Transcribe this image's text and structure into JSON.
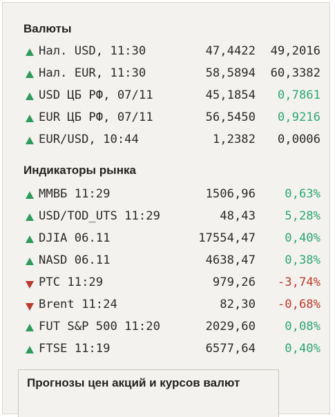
{
  "currencies": {
    "title": "Валюты",
    "rows": [
      {
        "dir": "up",
        "label": "Нал. USD, 11:30",
        "v1": "47,4422",
        "v2": "49,2016",
        "tone": "neutral"
      },
      {
        "dir": "up",
        "label": "Нал. EUR, 11:30",
        "v1": "58,5894",
        "v2": "60,3382",
        "tone": "neutral"
      },
      {
        "dir": "up",
        "label": "USD ЦБ РФ, 07/11",
        "v1": "45,1854",
        "v2": "0,7861",
        "tone": "pos"
      },
      {
        "dir": "up",
        "label": "EUR ЦБ РФ, 07/11",
        "v1": "56,5450",
        "v2": "0,9216",
        "tone": "pos"
      },
      {
        "dir": "up",
        "label": "EUR/USD, 10:44",
        "v1": "1,2382",
        "v2": "0,0006",
        "tone": "neutral"
      }
    ]
  },
  "indicators": {
    "title": "Индикаторы рынка",
    "rows": [
      {
        "dir": "up",
        "label": "ММВБ 11:29",
        "v1": "1506,96",
        "v2": "0,63%",
        "tone": "pos"
      },
      {
        "dir": "up",
        "label": "USD/TOD_UTS 11:29",
        "v1": "48,43",
        "v2": "5,28%",
        "tone": "pos"
      },
      {
        "dir": "up",
        "label": "DJIA 06.11",
        "v1": "17554,47",
        "v2": "0,40%",
        "tone": "pos"
      },
      {
        "dir": "up",
        "label": "NASD 06.11",
        "v1": "4638,47",
        "v2": "0,38%",
        "tone": "pos"
      },
      {
        "dir": "down",
        "label": "РТС 11:29",
        "v1": "979,26",
        "v2": "-3,74%",
        "tone": "neg"
      },
      {
        "dir": "down",
        "label": "Brent 11:24",
        "v1": "82,30",
        "v2": "-0,68%",
        "tone": "neg"
      },
      {
        "dir": "up",
        "label": "FUT S&P 500 11:20",
        "v1": "2029,60",
        "v2": "0,08%",
        "tone": "pos"
      },
      {
        "dir": "up",
        "label": "FTSE 11:19",
        "v1": "6577,64",
        "v2": "0,40%",
        "tone": "pos"
      }
    ]
  },
  "forecast": {
    "title": "Прогнозы цен акций и курсов валют"
  },
  "colors": {
    "up": "#2a9d5c",
    "down": "#c0392b",
    "positive_text": "#2aa872",
    "negative_text": "#c0392b",
    "panel_background": "#f4f2ee"
  },
  "icons": {
    "up": "triangle-up-icon",
    "down": "triangle-down-icon"
  }
}
